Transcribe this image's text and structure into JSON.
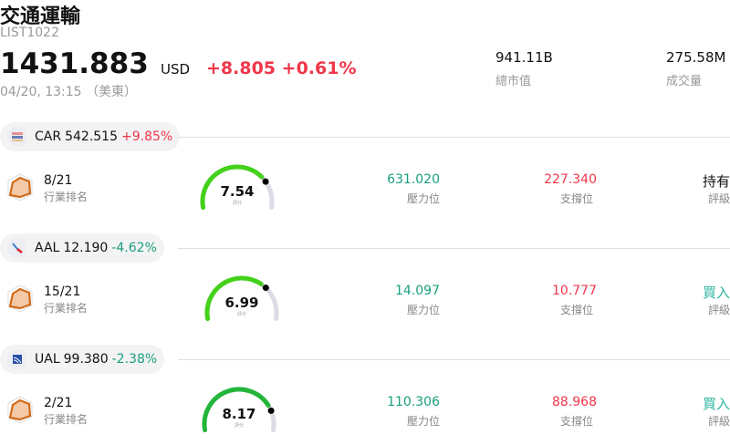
{
  "header": {
    "title": "交通運輸",
    "code": "LIST1022",
    "price": "1431.883",
    "currency": "USD",
    "change": "+8.805",
    "change_pct": "+0.61%",
    "time": "04/20, 13:15 （美東）",
    "market_cap": {
      "value": "941.11B",
      "label": "總市值"
    },
    "volume": {
      "value": "275.58M",
      "label": "成交量"
    }
  },
  "colors": {
    "up": "#f0364a",
    "down": "#1a9e7e",
    "gauge_track": "#dcdce6"
  },
  "labels": {
    "rank": "行業排名",
    "score": "評分",
    "resistance": "壓力位",
    "support": "支撐位",
    "rating": "評級"
  },
  "stocks": [
    {
      "ticker": "CAR",
      "price": "542.515",
      "change": "+9.85%",
      "dir": "up",
      "logo_icon": "avis-budget-logo",
      "rank": "8/21",
      "score": "7.54",
      "score_value": 7.54,
      "gauge_color": "#44d11a",
      "resistance": "631.020",
      "support": "227.340",
      "rating": "持有",
      "rating_color": "#111111"
    },
    {
      "ticker": "AAL",
      "price": "12.190",
      "change": "-4.62%",
      "dir": "down",
      "logo_icon": "american-airlines-logo",
      "rank": "15/21",
      "score": "6.99",
      "score_value": 6.99,
      "gauge_color": "#44d11a",
      "resistance": "14.097",
      "support": "10.777",
      "rating": "買入",
      "rating_color": "#2bb5a0"
    },
    {
      "ticker": "UAL",
      "price": "99.380",
      "change": "-2.38%",
      "dir": "down",
      "logo_icon": "united-airlines-logo",
      "rank": "2/21",
      "score": "8.17",
      "score_value": 8.17,
      "gauge_color": "#22b53a",
      "resistance": "110.306",
      "support": "88.968",
      "rating": "買入",
      "rating_color": "#2bb5a0"
    }
  ]
}
